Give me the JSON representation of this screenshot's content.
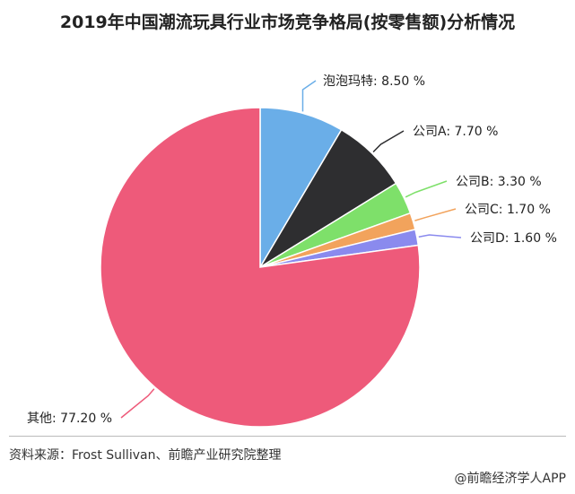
{
  "chart_data": {
    "type": "pie",
    "title": "2019年中国潮流玩具行业市场竞争格局(按零售额)分析情况",
    "slices": [
      {
        "label": "泡泡玛特: 8.50 %",
        "value": 8.5,
        "color": "#6aaee8"
      },
      {
        "label": "公司A: 7.70 %",
        "value": 7.7,
        "color": "#2e2e30"
      },
      {
        "label": "公司B: 3.30 %",
        "value": 3.3,
        "color": "#7ee06a"
      },
      {
        "label": "公司C: 1.70 %",
        "value": 1.7,
        "color": "#f2a35c"
      },
      {
        "label": "公司D: 1.60 %",
        "value": 1.6,
        "color": "#8a8aee"
      },
      {
        "label": "其他: 77.20 %",
        "value": 77.2,
        "color": "#ee5a7a"
      }
    ]
  },
  "footer": {
    "source": "资料来源：Frost Sullivan、前瞻产业研究院整理",
    "watermark": "@前瞻经济学人APP"
  }
}
